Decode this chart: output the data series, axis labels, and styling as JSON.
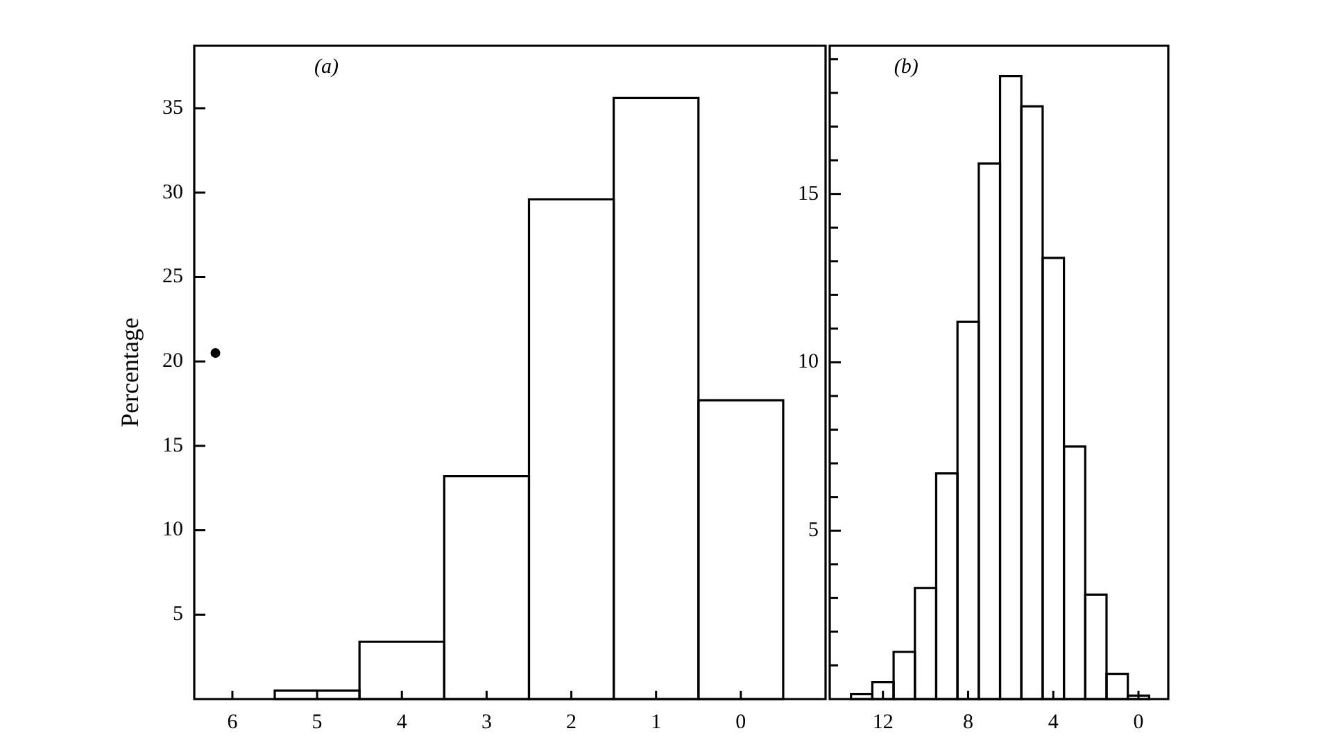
{
  "chart_data": [
    {
      "type": "histogram",
      "bins": [
        5.5,
        4.5,
        3.5,
        2.5,
        1.5,
        0.5,
        -0.5
      ],
      "series": [
        {
          "color": "#000000",
          "values": [
            0.5,
            3.4,
            13.2,
            29.6,
            35.6,
            17.7
          ]
        },
        {
          "type": "scatter",
          "color": "#000000",
          "x": [
            6.2
          ],
          "values": [
            20.5
          ]
        }
      ],
      "marker": "circle",
      "ylabel": "Percentage",
      "annotations": [
        "(a)"
      ],
      "xlim": [
        6.45,
        -1
      ],
      "xticks": [
        6,
        5,
        4,
        3,
        2,
        1,
        0
      ],
      "ylim": [
        0,
        38.7
      ],
      "yticks": [
        5,
        10,
        15,
        20,
        25,
        30,
        35
      ]
    },
    {
      "type": "histogram",
      "bins": [
        13.5,
        12.5,
        11.5,
        10.5,
        9.5,
        8.5,
        7.5,
        6.5,
        5.5,
        4.5,
        3.5,
        2.5,
        1.5,
        0.5,
        -0.5
      ],
      "values": [
        0.15,
        0.5,
        1.4,
        3.3,
        6.7,
        11.2,
        15.9,
        18.5,
        17.6,
        13.1,
        7.5,
        3.1,
        0.75,
        0.1
      ],
      "color": "#000000",
      "annotations": [
        "(b)"
      ],
      "xlim": [
        14.5,
        -1.4
      ],
      "xticks": [
        12,
        8,
        4,
        0
      ],
      "ylim": [
        0,
        19.4
      ],
      "yticks": [
        {
          "value": 1,
          "label": null
        },
        {
          "value": 2,
          "label": null
        },
        {
          "value": 3,
          "label": null
        },
        {
          "value": 4,
          "label": null
        },
        5,
        {
          "value": 6,
          "label": null
        },
        {
          "value": 7,
          "label": null
        },
        {
          "value": 8,
          "label": null
        },
        {
          "value": 9,
          "label": null
        },
        10,
        {
          "value": 11,
          "label": null
        },
        {
          "value": 12,
          "label": null
        },
        {
          "value": 13,
          "label": null
        },
        {
          "value": 14,
          "label": null
        },
        15,
        {
          "value": 16,
          "label": null
        },
        {
          "value": 17,
          "label": null
        },
        {
          "value": 18,
          "label": null
        },
        {
          "value": 19,
          "label": null
        }
      ]
    }
  ]
}
